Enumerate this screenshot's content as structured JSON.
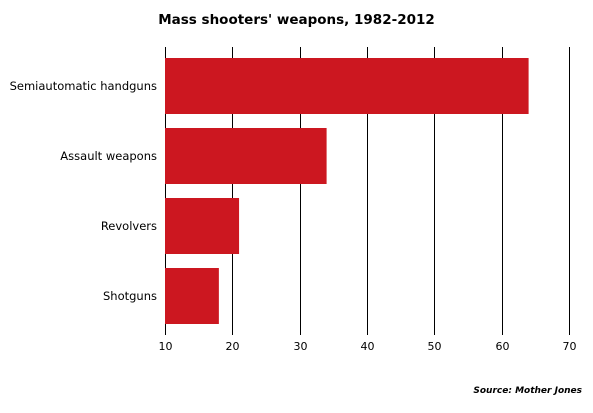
{
  "chart_data": {
    "type": "bar",
    "orientation": "horizontal",
    "title": "Mass shooters' weapons, 1982-2012",
    "categories": [
      "Semiautomatic handguns",
      "Assault weapons",
      "Revolvers",
      "Shotguns"
    ],
    "values": [
      64,
      34,
      21,
      18
    ],
    "xlim": [
      10,
      70
    ],
    "xticks": [
      10,
      20,
      30,
      40,
      50,
      60,
      70
    ],
    "grid": "vertical",
    "bar_color": "#cc1720",
    "source": "Source: Mother Jones"
  }
}
